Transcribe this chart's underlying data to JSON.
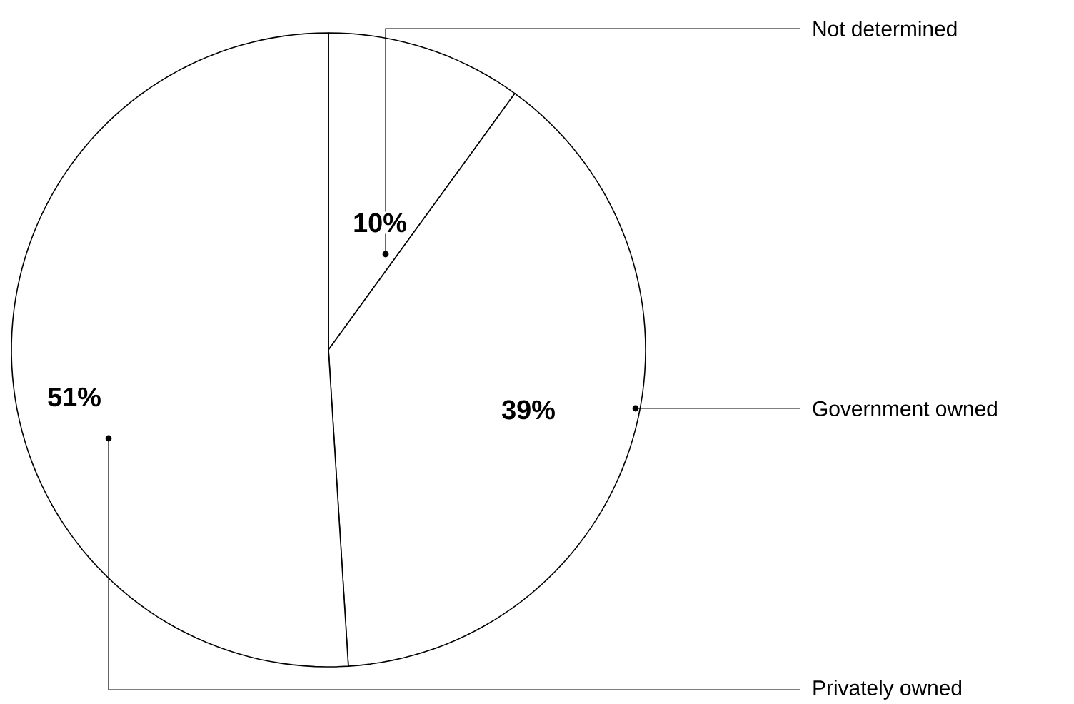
{
  "chart_data": {
    "type": "pie",
    "categories": [
      "Not determined",
      "Government owned",
      "Privately owned"
    ],
    "values": [
      10,
      39,
      51
    ],
    "colors": [
      "#ffffff",
      "#ffffff",
      "#ffffff"
    ],
    "value_labels": [
      "10%",
      "39%",
      "51%"
    ]
  }
}
